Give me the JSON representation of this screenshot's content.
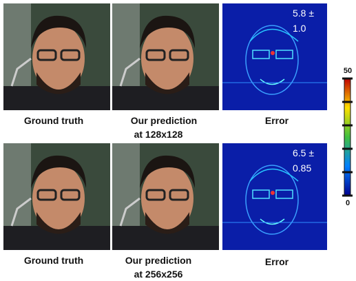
{
  "rows": [
    {
      "ground_truth_label": "Ground truth",
      "prediction_label": [
        "Our prediction",
        "at 128x128"
      ],
      "error_label": "Error",
      "error_value": [
        "5.8 ±",
        "1.0"
      ]
    },
    {
      "ground_truth_label": "Ground truth",
      "prediction_label": [
        "Our prediction",
        "at 256x256"
      ],
      "error_label": "Error",
      "error_value": [
        "6.5 ±",
        "0.85"
      ]
    }
  ],
  "colorbar": {
    "max_label": "50",
    "min_label": "0"
  }
}
